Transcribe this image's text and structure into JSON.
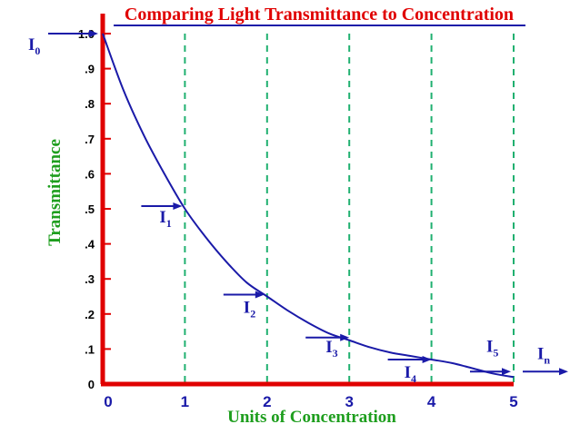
{
  "colors": {
    "title": "#e00000",
    "title_rule": "#1a1aa8",
    "axes": "#e00000",
    "curve": "#1a1aa8",
    "gridlines": "#20b070",
    "axis_label": "#1e9e1e",
    "x_ticks": "#1a1aa8",
    "y_ticks": "#000000",
    "arrows": "#1a1aa8"
  },
  "chart_data": {
    "type": "line",
    "title": "Comparing Light Transmittance to Concentration",
    "xlabel": "Units of Concentration",
    "ylabel": "Transmittance",
    "xlim": [
      0,
      5
    ],
    "ylim": [
      0,
      1.0
    ],
    "x_tick_labels": [
      "0",
      "1",
      "2",
      "3",
      "4",
      "5"
    ],
    "y_tick_labels": [
      "0",
      ".1",
      ".2",
      ".3",
      ".4",
      ".5",
      ".6",
      ".7",
      ".8",
      ".9",
      "1.0"
    ],
    "grid": "vertical dashed at x = 1..5",
    "series": [
      {
        "x": [
          0,
          0.25,
          0.5,
          0.75,
          1,
          1.25,
          1.5,
          1.75,
          2,
          2.25,
          2.5,
          2.75,
          3,
          3.25,
          3.5,
          3.75,
          4,
          4.25,
          4.5,
          4.75,
          5
        ],
        "y": [
          1.0,
          0.84,
          0.71,
          0.6,
          0.5,
          0.42,
          0.35,
          0.29,
          0.25,
          0.21,
          0.175,
          0.145,
          0.125,
          0.105,
          0.09,
          0.08,
          0.07,
          0.06,
          0.045,
          0.03,
          0.02
        ]
      }
    ],
    "intensity_markers": [
      {
        "label": "I",
        "sub": "0",
        "x": 0,
        "y": 1.0
      },
      {
        "label": "I",
        "sub": "1",
        "x": 1,
        "y": 0.5
      },
      {
        "label": "I",
        "sub": "2",
        "x": 2,
        "y": 0.25
      },
      {
        "label": "I",
        "sub": "3",
        "x": 3,
        "y": 0.125
      },
      {
        "label": "I",
        "sub": "4",
        "x": 4,
        "y": 0.07
      },
      {
        "label": "I",
        "sub": "5",
        "x": 5,
        "y": 0.02
      },
      {
        "label": "I",
        "sub": "n",
        "x": 5,
        "y": 0.02
      }
    ]
  }
}
